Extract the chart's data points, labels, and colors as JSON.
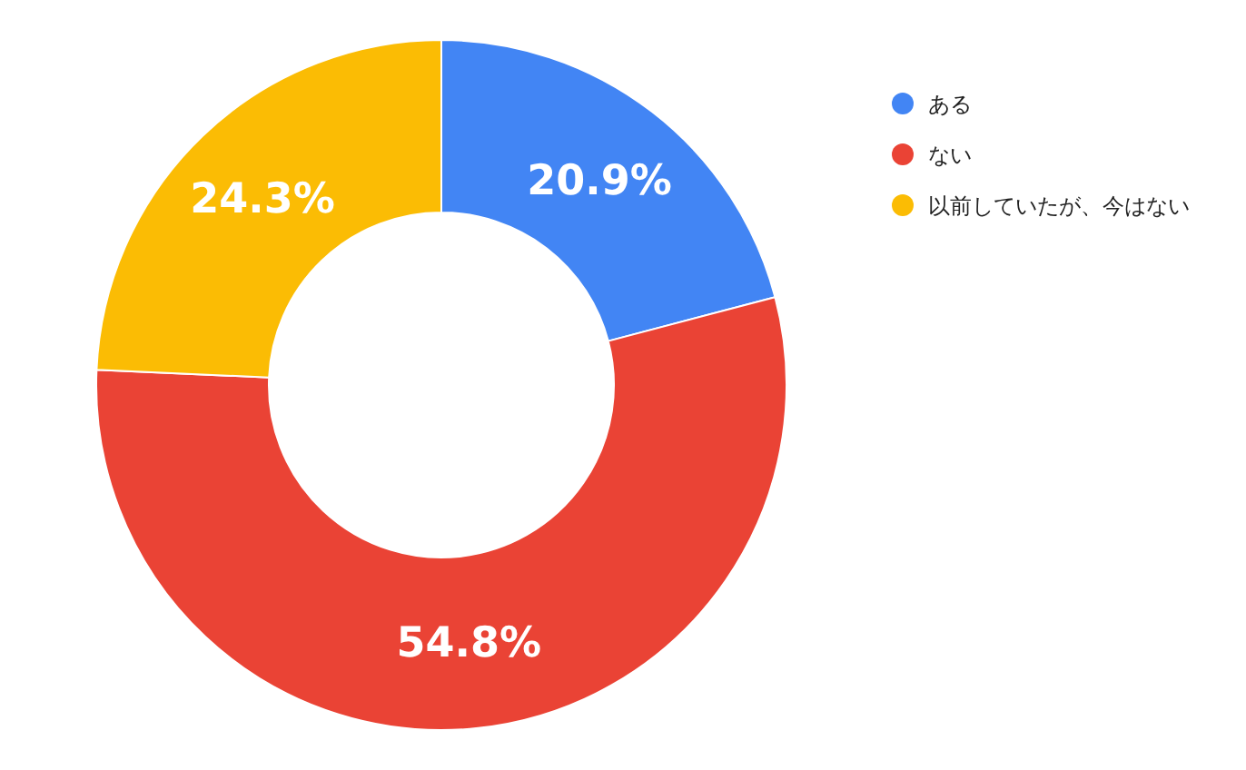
{
  "chart_data": {
    "type": "donut",
    "categories": [
      "ある",
      "ない",
      "以前していたが、今はない"
    ],
    "values": [
      20.9,
      54.8,
      24.3
    ],
    "colors": [
      "#4285f4",
      "#ea4335",
      "#fbbc04"
    ],
    "value_labels": [
      "20.9%",
      "54.8%",
      "24.3%"
    ],
    "legend": "top right"
  }
}
